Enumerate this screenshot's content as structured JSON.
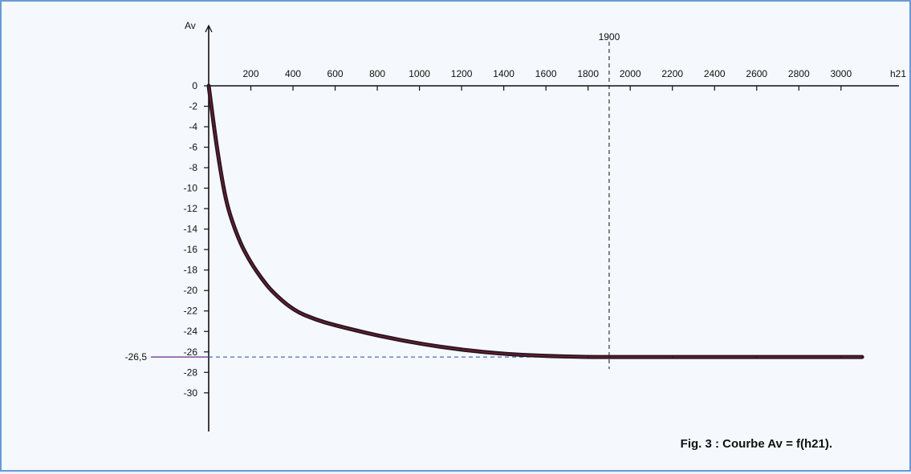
{
  "chart_data": {
    "type": "line",
    "caption": "Fig. 3 : Courbe Av = f(h21).",
    "xlabel": "h21",
    "ylabel": "Av",
    "xticks": [
      200,
      400,
      600,
      800,
      1000,
      1200,
      1400,
      1600,
      1800,
      2000,
      2200,
      2400,
      2600,
      2800,
      3000
    ],
    "yticks": [
      0,
      -2,
      -4,
      -6,
      -8,
      -10,
      -12,
      -14,
      -16,
      -18,
      -20,
      -22,
      -24,
      -26,
      -28,
      -30
    ],
    "xlim": [
      0,
      3200
    ],
    "ylim": [
      -31,
      0
    ],
    "series": [
      {
        "x": [
          0,
          25,
          50,
          75,
          100,
          150,
          200,
          250,
          300,
          400,
          500,
          600,
          700,
          800,
          1000,
          1200,
          1400,
          1600,
          1800,
          1900,
          2200,
          2600,
          3000,
          3100
        ],
        "y": [
          0,
          -4,
          -7.5,
          -10.5,
          -12.6,
          -15.4,
          -17.3,
          -18.8,
          -20.1,
          -21.9,
          -22.8,
          -23.4,
          -23.9,
          -24.4,
          -25.2,
          -25.8,
          -26.2,
          -26.4,
          -26.5,
          -26.5,
          -26.5,
          -26.5,
          -26.5,
          -26.5
        ]
      }
    ],
    "annotations": [
      {
        "label": "1900",
        "x": 1900,
        "axis": "x"
      },
      {
        "label": "-26,5",
        "y": -26.5,
        "axis": "y"
      }
    ],
    "colors": {
      "curve": "#2a1420",
      "curve_highlight": "#b0334a",
      "annotation_x": "#111111",
      "annotation_y": "#1f4fa8",
      "axis_marker": "#6a2a8a"
    }
  }
}
